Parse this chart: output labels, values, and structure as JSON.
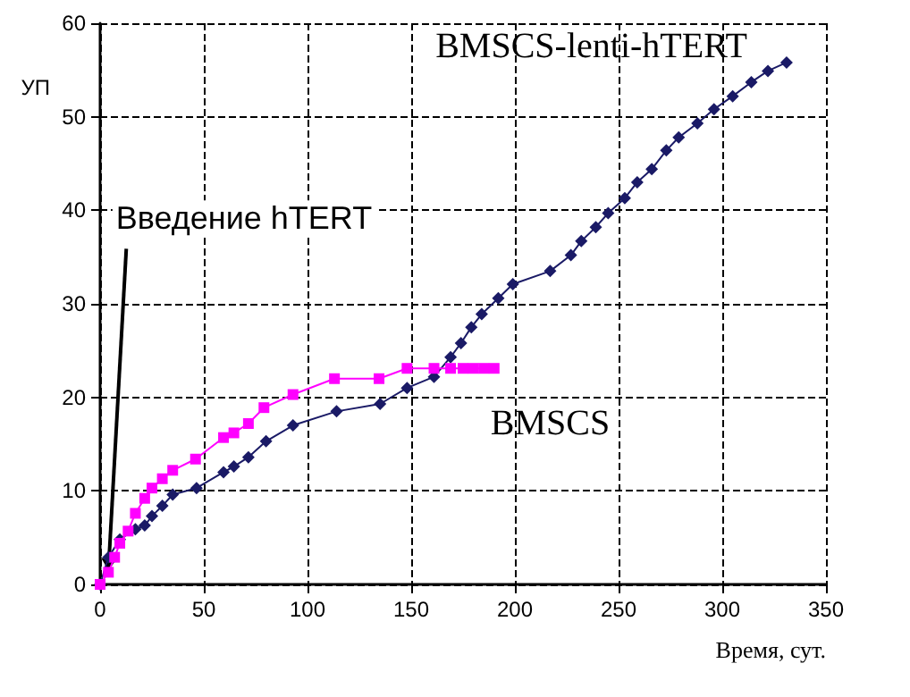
{
  "chart_data": {
    "type": "line",
    "xlabel": "Время, сут.",
    "ylabel": "УП",
    "xlim": [
      0,
      350
    ],
    "xticks": [
      0,
      50,
      100,
      150,
      200,
      250,
      300,
      350
    ],
    "ylim": [
      0,
      60
    ],
    "yticks": [
      0,
      10,
      20,
      30,
      40,
      50,
      60
    ],
    "grid": true,
    "legend": false,
    "annotations": [
      {
        "text": "Введение hTERT",
        "x": 4,
        "y": 1.5
      }
    ],
    "series": [
      {
        "name": "BMSCS-lenti-hTERT",
        "color": "#1a1a66",
        "marker": "diamond",
        "x": [
          0,
          4,
          9.5,
          17,
          21.5,
          25,
          30,
          35,
          46.5,
          59.5,
          64.5,
          71.5,
          80,
          93,
          114,
          135,
          148,
          161,
          169,
          174,
          179,
          184,
          192,
          199,
          217,
          227,
          232,
          239,
          245,
          253,
          259,
          266,
          273,
          279,
          288,
          296,
          305,
          314,
          322,
          331
        ],
        "values": [
          0,
          2.9,
          4.8,
          5.9,
          6.3,
          7.3,
          8.4,
          9.6,
          10.3,
          12,
          12.6,
          13.6,
          15.3,
          17,
          18.5,
          19.3,
          21,
          22.2,
          24.3,
          25.8,
          27.5,
          28.9,
          30.6,
          32.1,
          33.5,
          35.2,
          36.7,
          38.2,
          39.7,
          41.3,
          43,
          44.4,
          46.4,
          47.8,
          49.3,
          50.8,
          52.2,
          53.7,
          54.9,
          55.8
        ]
      },
      {
        "name": "BMSCS",
        "color": "#ff00ff",
        "marker": "square",
        "x": [
          0,
          4,
          7,
          9.5,
          13.5,
          17,
          21.5,
          25,
          30,
          35,
          46,
          59.5,
          64.5,
          71.5,
          79,
          93,
          113,
          134.5,
          148,
          161,
          169,
          175,
          180,
          185,
          190
        ],
        "values": [
          0,
          1.3,
          2.9,
          4.4,
          5.7,
          7.6,
          9.2,
          10.3,
          11.3,
          12.2,
          13.4,
          15.7,
          16.2,
          17.2,
          18.9,
          20.3,
          22,
          22,
          23.1,
          23.1,
          23.1,
          23.1,
          23.1,
          23.1,
          23.1
        ]
      }
    ]
  }
}
